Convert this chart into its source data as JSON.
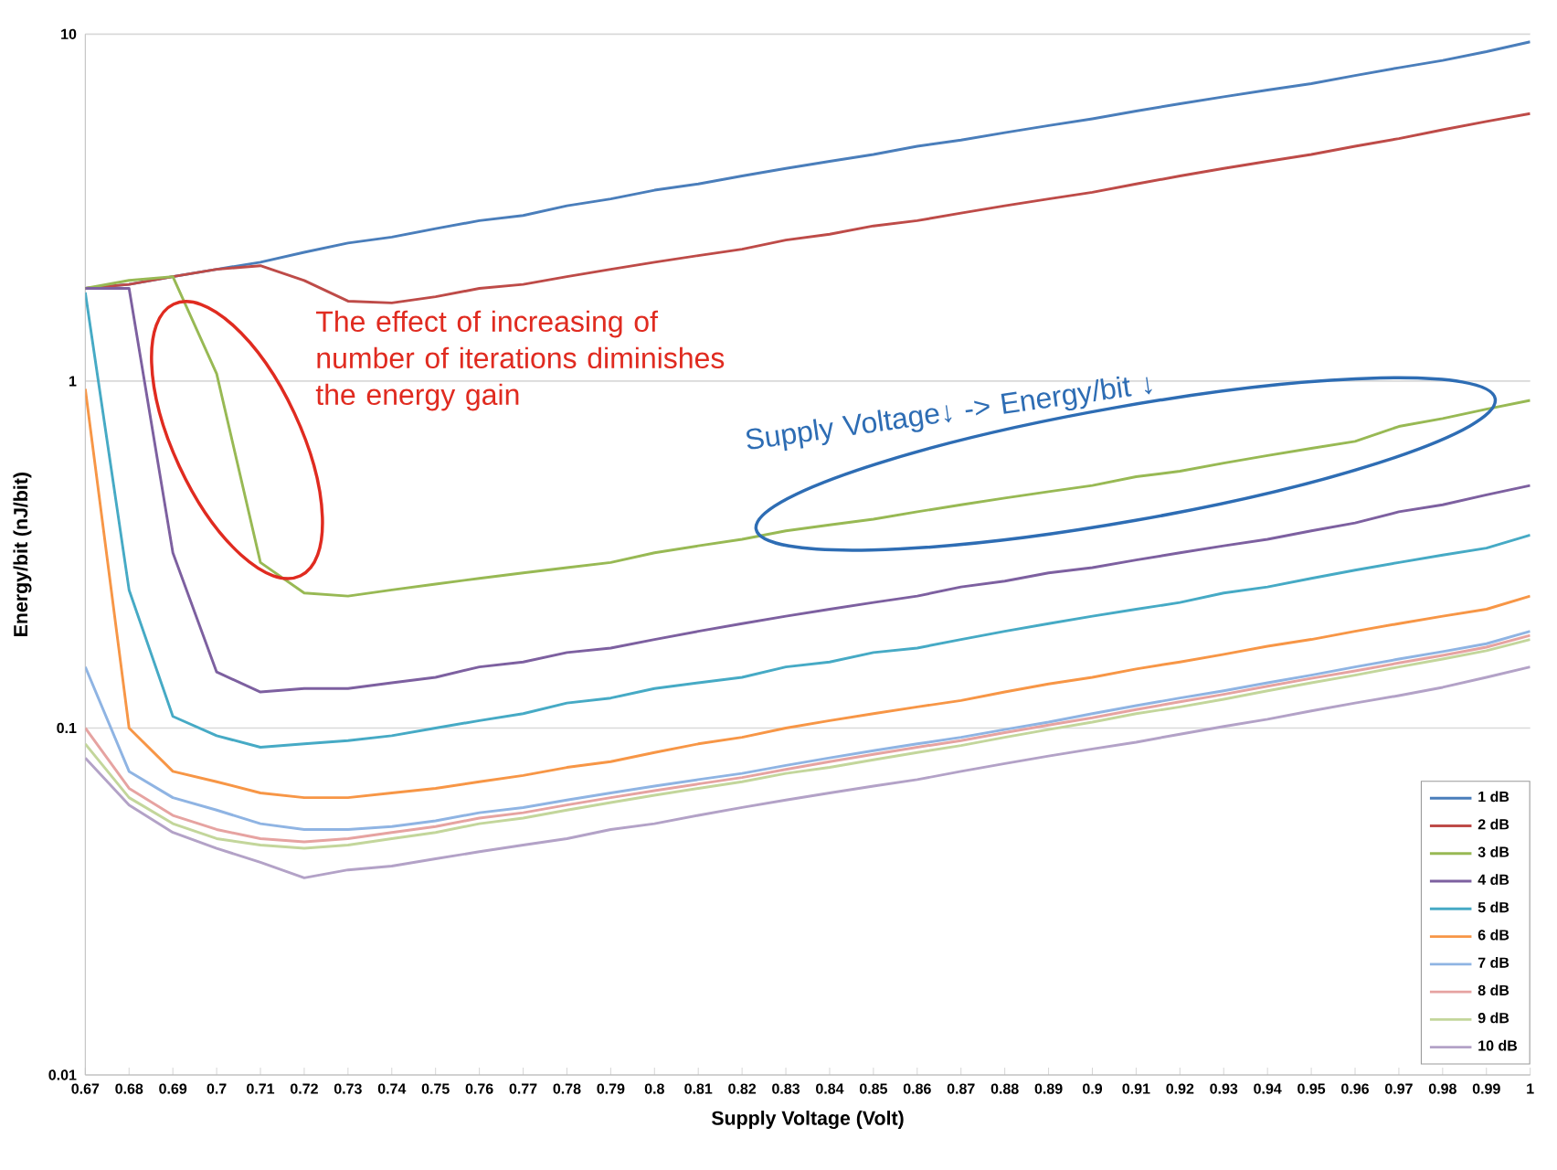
{
  "chart_data": {
    "type": "line",
    "xlabel": "Supply Voltage (Volt)",
    "ylabel": "Energy/bit (nJ/bit)",
    "categories": [
      "0.67",
      "0.68",
      "0.69",
      "0.7",
      "0.71",
      "0.72",
      "0.73",
      "0.74",
      "0.75",
      "0.76",
      "0.77",
      "0.78",
      "0.79",
      "0.8",
      "0.81",
      "0.82",
      "0.83",
      "0.84",
      "0.85",
      "0.86",
      "0.87",
      "0.88",
      "0.89",
      "0.9",
      "0.91",
      "0.92",
      "0.93",
      "0.94",
      "0.95",
      "0.96",
      "0.97",
      "0.98",
      "0.99",
      "1"
    ],
    "log": "y",
    "ylim": [
      0.01,
      10
    ],
    "yticks": [
      0.01,
      0.1,
      1,
      10
    ],
    "grid": "y",
    "legend": "bottom right",
    "series": [
      {
        "name": "1 dB",
        "color": "#4a7ebb",
        "values": [
          1.85,
          1.9,
          2.0,
          2.1,
          2.2,
          2.35,
          2.5,
          2.6,
          2.75,
          2.9,
          3.0,
          3.2,
          3.35,
          3.55,
          3.7,
          3.9,
          4.1,
          4.3,
          4.5,
          4.75,
          4.95,
          5.2,
          5.45,
          5.7,
          6.0,
          6.3,
          6.6,
          6.9,
          7.2,
          7.6,
          8.0,
          8.4,
          8.9,
          9.5
        ]
      },
      {
        "name": "2 dB",
        "color": "#be4b48",
        "values": [
          1.85,
          1.9,
          2.0,
          2.1,
          2.15,
          1.95,
          1.7,
          1.68,
          1.75,
          1.85,
          1.9,
          2.0,
          2.1,
          2.2,
          2.3,
          2.4,
          2.55,
          2.65,
          2.8,
          2.9,
          3.05,
          3.2,
          3.35,
          3.5,
          3.7,
          3.9,
          4.1,
          4.3,
          4.5,
          4.75,
          5.0,
          5.3,
          5.6,
          5.9
        ]
      },
      {
        "name": "3 dB",
        "color": "#98b954",
        "values": [
          1.85,
          1.95,
          2.0,
          1.05,
          0.3,
          0.245,
          0.24,
          0.25,
          0.26,
          0.27,
          0.28,
          0.29,
          0.3,
          0.32,
          0.335,
          0.35,
          0.37,
          0.385,
          0.4,
          0.42,
          0.44,
          0.46,
          0.48,
          0.5,
          0.53,
          0.55,
          0.58,
          0.61,
          0.64,
          0.67,
          0.74,
          0.78,
          0.83,
          0.88
        ]
      },
      {
        "name": "4 dB",
        "color": "#7d60a0",
        "values": [
          1.85,
          1.85,
          0.32,
          0.145,
          0.127,
          0.13,
          0.13,
          0.135,
          0.14,
          0.15,
          0.155,
          0.165,
          0.17,
          0.18,
          0.19,
          0.2,
          0.21,
          0.22,
          0.23,
          0.24,
          0.255,
          0.265,
          0.28,
          0.29,
          0.305,
          0.32,
          0.335,
          0.35,
          0.37,
          0.39,
          0.42,
          0.44,
          0.47,
          0.5
        ]
      },
      {
        "name": "5 dB",
        "color": "#46aac5",
        "values": [
          1.8,
          0.25,
          0.108,
          0.095,
          0.088,
          0.09,
          0.092,
          0.095,
          0.1,
          0.105,
          0.11,
          0.118,
          0.122,
          0.13,
          0.135,
          0.14,
          0.15,
          0.155,
          0.165,
          0.17,
          0.18,
          0.19,
          0.2,
          0.21,
          0.22,
          0.23,
          0.245,
          0.255,
          0.27,
          0.285,
          0.3,
          0.315,
          0.33,
          0.36
        ]
      },
      {
        "name": "6 dB",
        "color": "#f79646",
        "values": [
          0.95,
          0.1,
          0.075,
          0.07,
          0.065,
          0.063,
          0.063,
          0.065,
          0.067,
          0.07,
          0.073,
          0.077,
          0.08,
          0.085,
          0.09,
          0.094,
          0.1,
          0.105,
          0.11,
          0.115,
          0.12,
          0.127,
          0.134,
          0.14,
          0.148,
          0.155,
          0.163,
          0.172,
          0.18,
          0.19,
          0.2,
          0.21,
          0.22,
          0.24
        ]
      },
      {
        "name": "7 dB",
        "color": "#8fb4e3",
        "values": [
          0.15,
          0.075,
          0.063,
          0.058,
          0.053,
          0.051,
          0.051,
          0.052,
          0.054,
          0.057,
          0.059,
          0.062,
          0.065,
          0.068,
          0.071,
          0.074,
          0.078,
          0.082,
          0.086,
          0.09,
          0.094,
          0.099,
          0.104,
          0.11,
          0.116,
          0.122,
          0.128,
          0.135,
          0.142,
          0.15,
          0.158,
          0.166,
          0.175,
          0.19
        ]
      },
      {
        "name": "8 dB",
        "color": "#e6a3a1",
        "values": [
          0.1,
          0.067,
          0.056,
          0.051,
          0.048,
          0.047,
          0.048,
          0.05,
          0.052,
          0.055,
          0.057,
          0.06,
          0.063,
          0.066,
          0.069,
          0.072,
          0.076,
          0.08,
          0.084,
          0.088,
          0.092,
          0.097,
          0.102,
          0.107,
          0.113,
          0.119,
          0.125,
          0.132,
          0.139,
          0.146,
          0.154,
          0.162,
          0.171,
          0.185
        ]
      },
      {
        "name": "9 dB",
        "color": "#c3d69b",
        "values": [
          0.09,
          0.063,
          0.053,
          0.048,
          0.046,
          0.045,
          0.046,
          0.048,
          0.05,
          0.053,
          0.055,
          0.058,
          0.061,
          0.064,
          0.067,
          0.07,
          0.074,
          0.077,
          0.081,
          0.085,
          0.089,
          0.094,
          0.099,
          0.104,
          0.11,
          0.115,
          0.121,
          0.128,
          0.135,
          0.142,
          0.15,
          0.158,
          0.167,
          0.18
        ]
      },
      {
        "name": "10 dB",
        "color": "#b3a2c7",
        "values": [
          0.082,
          0.06,
          0.05,
          0.045,
          0.041,
          0.037,
          0.039,
          0.04,
          0.042,
          0.044,
          0.046,
          0.048,
          0.051,
          0.053,
          0.056,
          0.059,
          0.062,
          0.065,
          0.068,
          0.071,
          0.075,
          0.079,
          0.083,
          0.087,
          0.091,
          0.096,
          0.101,
          0.106,
          0.112,
          0.118,
          0.124,
          0.131,
          0.14,
          0.15
        ]
      }
    ],
    "annotations": [
      "The effect of increasing of number of iterations diminishes the energy gain",
      "Supply Voltage↓ -> Energy/bit ↓"
    ]
  }
}
